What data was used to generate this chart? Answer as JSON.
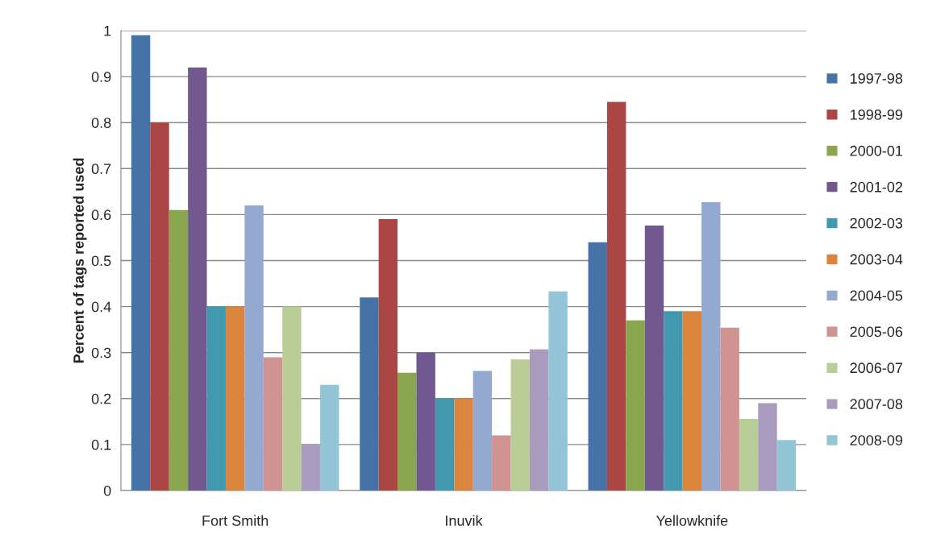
{
  "chart_data": {
    "type": "bar",
    "ylabel": "Percent of tags reported used",
    "categories": [
      "Fort Smith",
      "Inuvik",
      "Yellowknife"
    ],
    "series": [
      {
        "name": "1997-98",
        "color": "#4572a7",
        "values": [
          0.99,
          0.42,
          0.54
        ]
      },
      {
        "name": "1998-99",
        "color": "#aa4643",
        "values": [
          0.8,
          0.59,
          0.845
        ]
      },
      {
        "name": "2000-01",
        "color": "#89a54e",
        "values": [
          0.61,
          0.256,
          0.37
        ]
      },
      {
        "name": "2001-02",
        "color": "#71588f",
        "values": [
          0.92,
          0.3,
          0.576
        ]
      },
      {
        "name": "2002-03",
        "color": "#4198af",
        "values": [
          0.4,
          0.2,
          0.39
        ]
      },
      {
        "name": "2003-04",
        "color": "#db843d",
        "values": [
          0.4,
          0.2,
          0.39
        ]
      },
      {
        "name": "2004-05",
        "color": "#93a9cf",
        "values": [
          0.62,
          0.26,
          0.627
        ]
      },
      {
        "name": "2005-06",
        "color": "#d19392",
        "values": [
          0.29,
          0.12,
          0.354
        ]
      },
      {
        "name": "2006-07",
        "color": "#b9cd96",
        "values": [
          0.4,
          0.285,
          0.156
        ]
      },
      {
        "name": "2007-08",
        "color": "#a99bbd",
        "values": [
          0.1,
          0.307,
          0.19
        ]
      },
      {
        "name": "2008-09",
        "color": "#92c5d5",
        "values": [
          0.23,
          0.433,
          0.11
        ]
      }
    ],
    "ylim": [
      0,
      1
    ],
    "yticks": [
      0,
      0.1,
      0.2,
      0.3,
      0.4,
      0.5,
      0.6,
      0.7,
      0.8,
      0.9,
      1
    ],
    "grid": "y",
    "legend": "right"
  }
}
